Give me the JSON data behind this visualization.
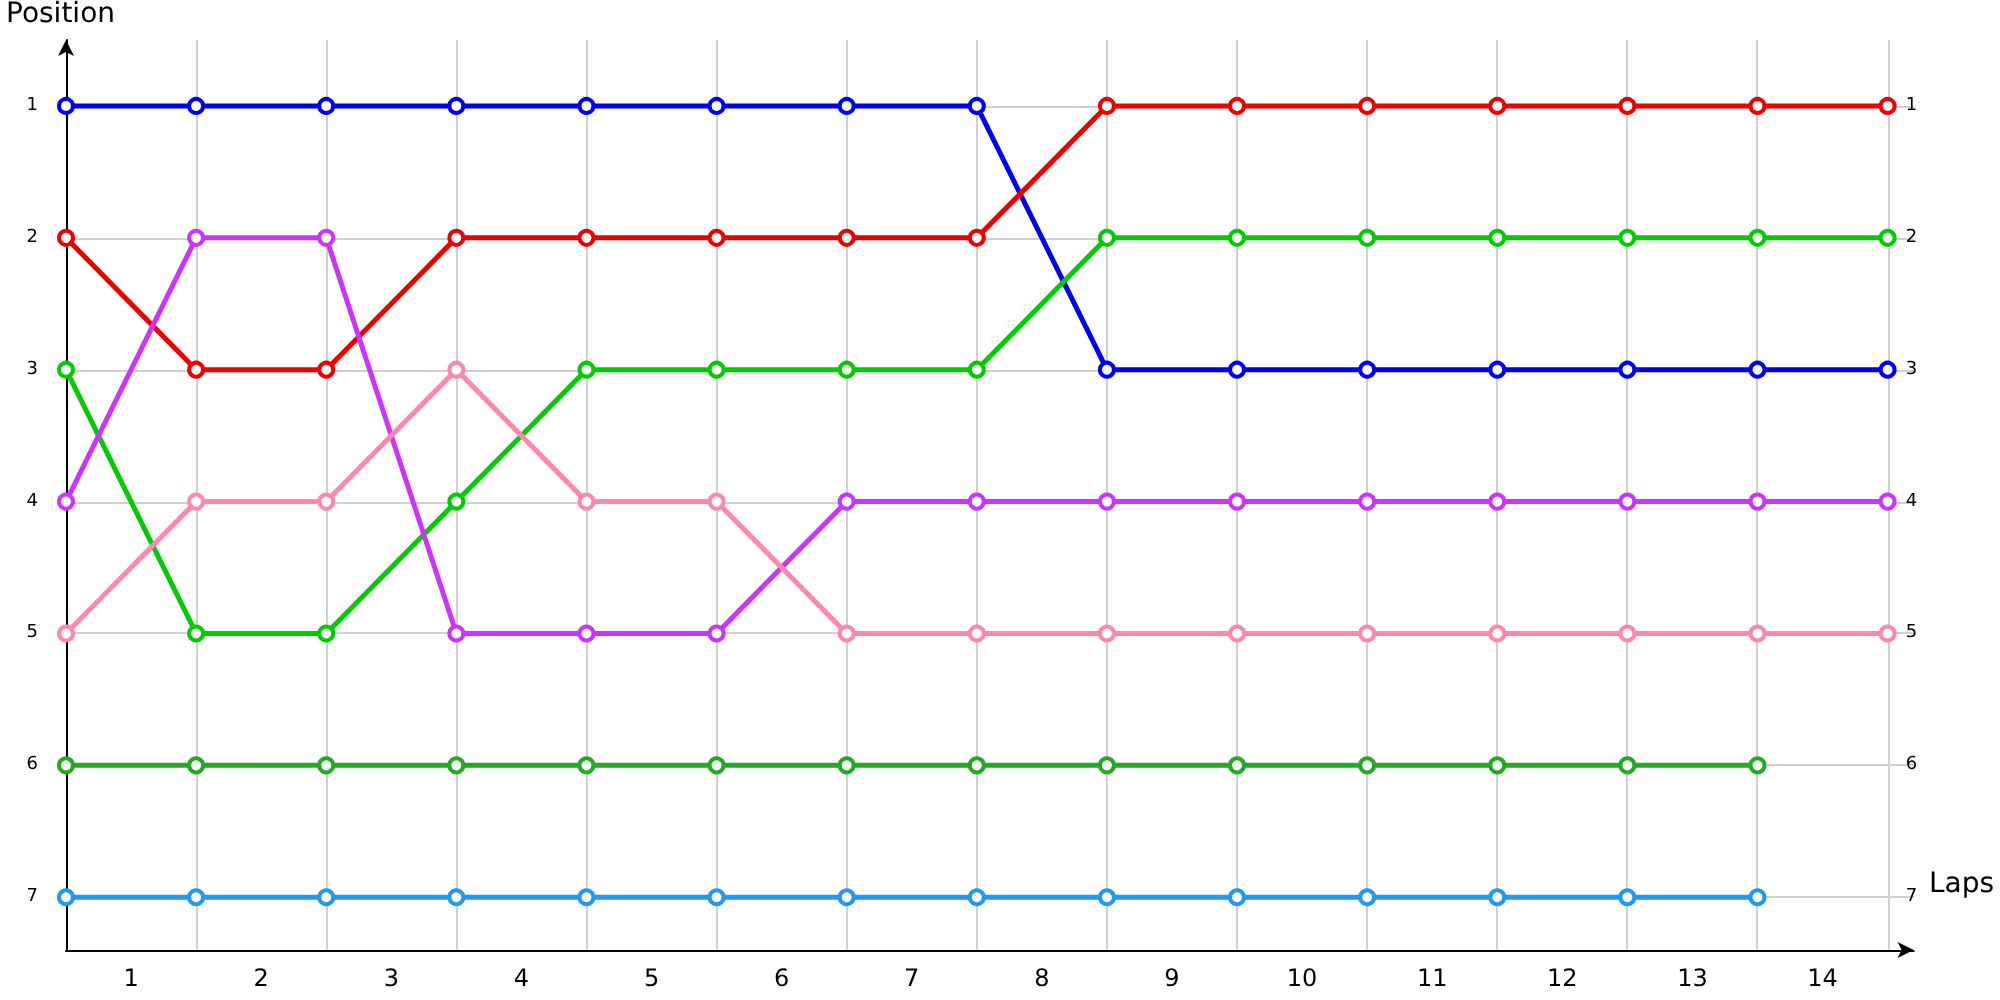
{
  "chart_data": {
    "type": "line",
    "xlabel": "Laps",
    "ylabel": "Position",
    "x": [
      0,
      1,
      2,
      3,
      4,
      5,
      6,
      7,
      8,
      9,
      10,
      11,
      12,
      13,
      14
    ],
    "xlim": [
      0,
      14.2
    ],
    "xticks": [
      {
        "value": 0,
        "label": null
      },
      {
        "value": 0.5,
        "label": "1"
      },
      {
        "value": 1,
        "label": null
      },
      {
        "value": 1.5,
        "label": "2"
      },
      {
        "value": 2,
        "label": null
      },
      {
        "value": 2.5,
        "label": "3"
      },
      {
        "value": 3,
        "label": null
      },
      {
        "value": 3.5,
        "label": "4"
      },
      {
        "value": 4,
        "label": null
      },
      {
        "value": 4.5,
        "label": "5"
      },
      {
        "value": 5,
        "label": null
      },
      {
        "value": 5.5,
        "label": "6"
      },
      {
        "value": 6,
        "label": null
      },
      {
        "value": 6.5,
        "label": "7"
      },
      {
        "value": 7,
        "label": null
      },
      {
        "value": 7.5,
        "label": "8"
      },
      {
        "value": 8,
        "label": null
      },
      {
        "value": 8.5,
        "label": "9"
      },
      {
        "value": 9,
        "label": null
      },
      {
        "value": 9.5,
        "label": "10"
      },
      {
        "value": 10,
        "label": null
      },
      {
        "value": 10.5,
        "label": "11"
      },
      {
        "value": 11,
        "label": null
      },
      {
        "value": 11.5,
        "label": "12"
      },
      {
        "value": 12,
        "label": null
      },
      {
        "value": 12.5,
        "label": "13"
      },
      {
        "value": 13,
        "label": null
      },
      {
        "value": 13.5,
        "label": "14"
      },
      {
        "value": 14,
        "label": null
      }
    ],
    "ylim": [
      7.4,
      0.5
    ],
    "yticks": [
      1,
      2,
      3,
      4,
      5,
      6,
      7
    ],
    "y2lim": [
      7.4,
      0.5
    ],
    "y2ticks": [
      1,
      2,
      3,
      4,
      5,
      6,
      7
    ],
    "grid": true,
    "marker": "circle",
    "line_style": "solid",
    "series": [
      {
        "color": "#0000ee",
        "values": [
          1,
          1,
          1,
          1,
          1,
          1,
          1,
          1,
          3,
          3,
          3,
          3,
          3,
          3,
          3
        ]
      },
      {
        "color": "#ee0000",
        "values": [
          2,
          3,
          3,
          2,
          2,
          2,
          2,
          2,
          1,
          1,
          1,
          1,
          1,
          1,
          1
        ]
      },
      {
        "color": "#00cc00",
        "values": [
          3,
          5,
          5,
          4,
          3,
          3,
          3,
          3,
          2,
          2,
          2,
          2,
          2,
          2,
          2
        ]
      },
      {
        "color": "#cc33ff",
        "values": [
          4,
          2,
          2,
          5,
          5,
          5,
          4,
          4,
          4,
          4,
          4,
          4,
          4,
          4,
          4
        ]
      },
      {
        "color": "#ff88aa",
        "values": [
          5,
          4,
          4,
          3,
          4,
          4,
          5,
          5,
          5,
          5,
          5,
          5,
          5,
          5,
          5
        ]
      },
      {
        "color": "#22aa22",
        "values": [
          6,
          6,
          6,
          6,
          6,
          6,
          6,
          6,
          6,
          6,
          6,
          6,
          6,
          6,
          null
        ]
      },
      {
        "color": "#2299ee",
        "values": [
          7,
          7,
          7,
          7,
          7,
          7,
          7,
          7,
          7,
          7,
          7,
          7,
          7,
          7,
          null
        ]
      }
    ]
  }
}
